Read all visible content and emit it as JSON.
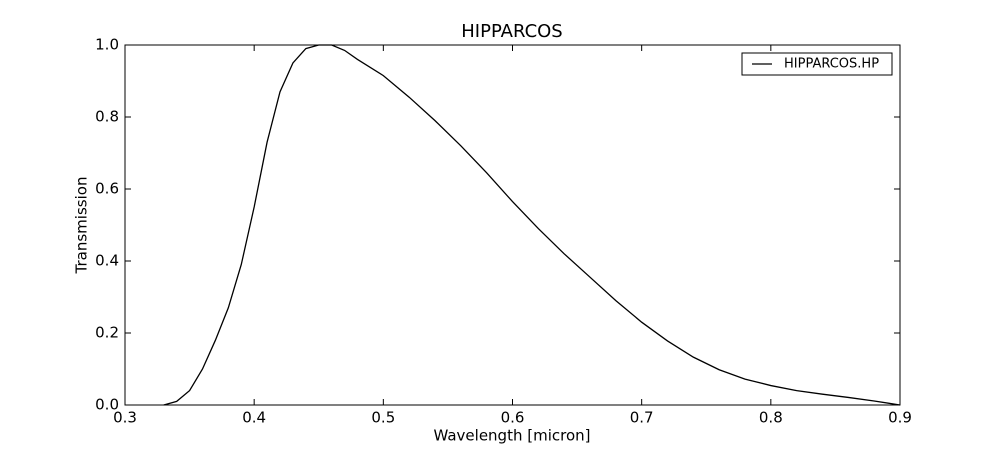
{
  "chart_data": {
    "type": "line",
    "title": "HIPPARCOS",
    "x_label": "Wavelength [micron]",
    "y_label": "Transmission",
    "legend": "upper right",
    "x": [
      0.33,
      0.34,
      0.35,
      0.36,
      0.37,
      0.38,
      0.39,
      0.4,
      0.41,
      0.42,
      0.43,
      0.44,
      0.45,
      0.46,
      0.47,
      0.48,
      0.5,
      0.52,
      0.54,
      0.56,
      0.58,
      0.6,
      0.62,
      0.64,
      0.66,
      0.68,
      0.7,
      0.72,
      0.74,
      0.76,
      0.78,
      0.8,
      0.82,
      0.84,
      0.86,
      0.88,
      0.9
    ],
    "series": [
      {
        "name": "HIPPARCOS.HP",
        "color": "#000000",
        "values": [
          0,
          0.01,
          0.04,
          0.1,
          0.18,
          0.27,
          0.39,
          0.55,
          0.73,
          0.87,
          0.95,
          0.99,
          1.0,
          1.0,
          0.985,
          0.96,
          0.915,
          0.855,
          0.79,
          0.72,
          0.645,
          0.565,
          0.49,
          0.42,
          0.355,
          0.29,
          0.23,
          0.178,
          0.133,
          0.098,
          0.072,
          0.054,
          0.04,
          0.03,
          0.021,
          0.011,
          0
        ]
      }
    ],
    "xlim": [
      0.3,
      0.9
    ],
    "xticks": [
      0.3,
      0.4,
      0.5,
      0.6,
      0.7,
      0.8,
      0.9
    ],
    "ylim": [
      0,
      1
    ],
    "yticks": [
      {
        "value": 0,
        "label": "0.0"
      },
      0.2,
      0.4,
      0.6,
      0.8,
      {
        "value": 1,
        "label": "1.0"
      }
    ],
    "grid": false
  }
}
